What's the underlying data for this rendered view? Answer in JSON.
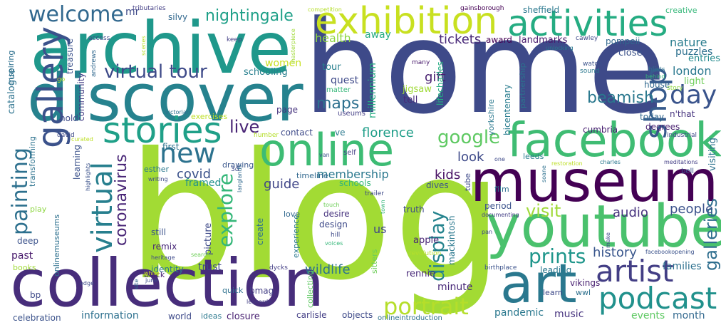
{
  "palette": {
    "purple": "#440154",
    "indigo": "#46337e",
    "navy": "#3e4a89",
    "steel": "#31688e",
    "teal": "#26828e",
    "sea": "#1f9e89",
    "green": "#35b779",
    "lime": "#6ece58",
    "yellowgreen": "#b5de2b",
    "yellow": "#c8e020"
  },
  "words": [
    {
      "text": "home",
      "color": "#3e4a89"
    },
    {
      "text": "blog",
      "color": "#a2db34"
    },
    {
      "text": "archive",
      "color": "#1f988b"
    },
    {
      "text": "discover",
      "color": "#26828e"
    },
    {
      "text": "collection",
      "color": "#472d7b"
    },
    {
      "text": "museum",
      "color": "#440154"
    },
    {
      "text": "youtube",
      "color": "#4ac16d"
    },
    {
      "text": "facebook",
      "color": "#3fbc73"
    },
    {
      "text": "online",
      "color": "#3dbc74"
    },
    {
      "text": "art",
      "color": "#2a788e"
    },
    {
      "text": "exhibition",
      "color": "#c8e020"
    },
    {
      "text": "activities",
      "color": "#25ac82"
    },
    {
      "text": "gallery",
      "color": "#3b528b"
    },
    {
      "text": "stories",
      "color": "#1fa088"
    },
    {
      "text": "shop",
      "color": "#375b8d"
    },
    {
      "text": "virtual tour",
      "color": "#3e4a89"
    },
    {
      "text": "welcome",
      "color": "#31688e"
    },
    {
      "text": "new",
      "color": "#2c728e"
    },
    {
      "text": "artist",
      "color": "#433e85"
    },
    {
      "text": "podcast",
      "color": "#21918c"
    },
    {
      "text": "virtual",
      "color": "#277f8e"
    },
    {
      "text": "painting",
      "color": "#2d708e"
    },
    {
      "text": "day",
      "color": "#3a548c"
    },
    {
      "text": "portrait",
      "color": "#b5de2b"
    },
    {
      "text": "explore",
      "color": "#35b779"
    },
    {
      "text": "coronavirus",
      "color": "#482576"
    },
    {
      "text": "display",
      "color": "#25848e"
    },
    {
      "text": "prints",
      "color": "#1f968b"
    },
    {
      "text": "galleries",
      "color": "#2e6e8e"
    },
    {
      "text": "live",
      "color": "#482475"
    },
    {
      "text": "google",
      "color": "#5ec962"
    },
    {
      "text": "visit",
      "color": "#a0da39"
    },
    {
      "text": "nightingale",
      "color": "#1fa088"
    },
    {
      "text": "maps",
      "color": "#2d708e"
    },
    {
      "text": "beamish",
      "color": "#2a788e"
    },
    {
      "text": "history",
      "color": "#39568c"
    },
    {
      "text": "people",
      "color": "#3b528b"
    },
    {
      "text": "audio",
      "color": "#46327e"
    },
    {
      "text": "tickets",
      "color": "#482878"
    },
    {
      "text": "florence",
      "color": "#1f9e89"
    },
    {
      "text": "wildlife",
      "color": "#2c728e"
    },
    {
      "text": "guide",
      "color": "#404688"
    },
    {
      "text": "covid",
      "color": "#3b528b"
    },
    {
      "text": "membership",
      "color": "#2a788e"
    },
    {
      "text": "kids",
      "color": "#471063"
    },
    {
      "text": "look",
      "color": "#3e4a89"
    },
    {
      "text": "gift",
      "color": "#481f70"
    },
    {
      "text": "london",
      "color": "#2a788e"
    },
    {
      "text": "nature",
      "color": "#287c8e"
    },
    {
      "text": "puzzles",
      "color": "#2d708e"
    },
    {
      "text": "health",
      "color": "#8fd744"
    },
    {
      "text": "away",
      "color": "#25ac82"
    },
    {
      "text": "women",
      "color": "#c8e020"
    },
    {
      "text": "schooling",
      "color": "#277f8e"
    },
    {
      "text": "millennium",
      "color": "#25ac82"
    },
    {
      "text": "quest",
      "color": "#3e4a89"
    },
    {
      "text": "tour",
      "color": "#277f8e"
    },
    {
      "text": "jigsaw",
      "color": "#a0da39"
    },
    {
      "text": "tell",
      "color": "#482878"
    },
    {
      "text": "sheffield",
      "color": "#2a788e"
    },
    {
      "text": "award",
      "color": "#440154"
    },
    {
      "text": "landmarks",
      "color": "#481a6c"
    },
    {
      "text": "pompeii",
      "color": "#31688e"
    },
    {
      "text": "close",
      "color": "#3b528b"
    },
    {
      "text": "entries",
      "color": "#238a8d"
    },
    {
      "text": "light",
      "color": "#6ece58"
    },
    {
      "text": "house",
      "color": "#31688e"
    },
    {
      "text": "n'that",
      "color": "#46337e"
    },
    {
      "text": "today",
      "color": "#31688e"
    },
    {
      "text": "degrees",
      "color": "#481f70"
    },
    {
      "text": "visiting",
      "color": "#2c728e"
    },
    {
      "text": "cumbria",
      "color": "#482071"
    },
    {
      "text": "bicentenary",
      "color": "#287c8e"
    },
    {
      "text": "period",
      "color": "#3b528b"
    },
    {
      "text": "film",
      "color": "#2d708e"
    },
    {
      "text": "leeds",
      "color": "#287c8e"
    },
    {
      "text": "yorkshire",
      "color": "#2a788e"
    },
    {
      "text": "lifecharles",
      "color": "#25ac82"
    },
    {
      "text": "partnership",
      "color": "#2c728e"
    },
    {
      "text": "creative",
      "color": "#35b779"
    },
    {
      "text": "catalogue",
      "color": "#2c728e"
    },
    {
      "text": "treasure",
      "color": "#3b528b"
    },
    {
      "text": "mr",
      "color": "#3e4a89"
    },
    {
      "text": "silvy",
      "color": "#31688e"
    },
    {
      "text": "community",
      "color": "#433e85"
    },
    {
      "text": "inspiring",
      "color": "#2d708e"
    },
    {
      "text": "hold",
      "color": "#3e4a89"
    },
    {
      "text": "learning",
      "color": "#3b528b"
    },
    {
      "text": "transforming",
      "color": "#2c728e"
    },
    {
      "text": "first",
      "color": "#2c728e"
    },
    {
      "text": "drawing",
      "color": "#39568c"
    },
    {
      "text": "framed",
      "color": "#21918c"
    },
    {
      "text": "esther",
      "color": "#2a788e"
    },
    {
      "text": "contact",
      "color": "#3e4a89"
    },
    {
      "text": "page",
      "color": "#46337e"
    },
    {
      "text": "exercises",
      "color": "#bddf26"
    },
    {
      "text": "schools",
      "color": "#35b779"
    },
    {
      "text": "timeline",
      "color": "#31688e"
    },
    {
      "text": "dives",
      "color": "#3b528b"
    },
    {
      "text": "tube",
      "color": "#3e4a89"
    },
    {
      "text": "create",
      "color": "#2d708e"
    },
    {
      "text": "desire",
      "color": "#46327e"
    },
    {
      "text": "design",
      "color": "#3e4a89"
    },
    {
      "text": "love",
      "color": "#31688e"
    },
    {
      "text": "us",
      "color": "#404688"
    },
    {
      "text": "truth",
      "color": "#3e4a89"
    },
    {
      "text": "apple",
      "color": "#482475"
    },
    {
      "text": "mackintosh",
      "color": "#2a788e"
    },
    {
      "text": "rennie",
      "color": "#482878"
    },
    {
      "text": "minute",
      "color": "#482878"
    },
    {
      "text": "leading",
      "color": "#2a788e"
    },
    {
      "text": "families",
      "color": "#2d708e"
    },
    {
      "text": "vikings",
      "color": "#482071"
    },
    {
      "text": "learn",
      "color": "#3e4a89"
    },
    {
      "text": "wwl",
      "color": "#2d708e"
    },
    {
      "text": "events",
      "color": "#5ec962"
    },
    {
      "text": "month",
      "color": "#31688e"
    },
    {
      "text": "music",
      "color": "#46327e"
    },
    {
      "text": "pandemic",
      "color": "#2a788e"
    },
    {
      "text": "objects",
      "color": "#3e4a89"
    },
    {
      "text": "carlisle",
      "color": "#433e85"
    },
    {
      "text": "closure",
      "color": "#482071"
    },
    {
      "text": "ideas",
      "color": "#2a788e"
    },
    {
      "text": "world",
      "color": "#3e4a89"
    },
    {
      "text": "information",
      "color": "#2d708e"
    },
    {
      "text": "celebration",
      "color": "#3b528b"
    },
    {
      "text": "bp",
      "color": "#3e4a89"
    },
    {
      "text": "past",
      "color": "#481a6c"
    },
    {
      "text": "deep",
      "color": "#3b528b"
    },
    {
      "text": "play",
      "color": "#8fd744"
    },
    {
      "text": "books",
      "color": "#a0da39"
    },
    {
      "text": "onlinemuseums",
      "color": "#2d708e"
    },
    {
      "text": "identity",
      "color": "#2a788e"
    },
    {
      "text": "trust",
      "color": "#3e4a89"
    },
    {
      "text": "still",
      "color": "#3b528b"
    },
    {
      "text": "remix",
      "color": "#482878"
    },
    {
      "text": "picture",
      "color": "#3e4a89"
    },
    {
      "text": "bmag",
      "color": "#433e85"
    },
    {
      "text": "quick",
      "color": "#2d708e"
    },
    {
      "text": "black",
      "color": "#482475"
    },
    {
      "text": "experience",
      "color": "#2a788e"
    },
    {
      "text": "sitters",
      "color": "#6ece58"
    },
    {
      "text": "collecting",
      "color": "#5ec962"
    },
    {
      "text": "onlineintroduction",
      "color": "#2d708e"
    },
    {
      "text": "tributaries",
      "color": "#433e85"
    },
    {
      "text": "access",
      "color": "#3e4a89"
    },
    {
      "text": "andrews",
      "color": "#31688e"
    },
    {
      "text": "keep",
      "color": "#433e85"
    },
    {
      "text": "competition",
      "color": "#b5de2b"
    },
    {
      "text": "masterpiece",
      "color": "#a0da39"
    },
    {
      "text": "scenes",
      "color": "#b5de2b"
    },
    {
      "text": "gainsborough",
      "color": "#440154"
    },
    {
      "text": "cawley",
      "color": "#3e4a89"
    },
    {
      "text": "unlocking",
      "color": "#2a788e"
    },
    {
      "text": "watch",
      "color": "#3b528b"
    },
    {
      "text": "sound",
      "color": "#2a788e"
    },
    {
      "text": "blists",
      "color": "#2d708e"
    },
    {
      "text": "behind",
      "color": "#35b779"
    },
    {
      "text": "story",
      "color": "#8fd744"
    },
    {
      "text": "many",
      "color": "#481a6c"
    },
    {
      "text": "matter",
      "color": "#35b779"
    },
    {
      "text": "useums",
      "color": "#433e85"
    },
    {
      "text": "go",
      "color": "#b5de2b"
    },
    {
      "text": "curated",
      "color": "#bddf26"
    },
    {
      "text": "victorian",
      "color": "#2d708e"
    },
    {
      "text": "david",
      "color": "#3e4a89"
    },
    {
      "text": "highlights",
      "color": "#3b528b"
    },
    {
      "text": "writing",
      "color": "#3e4a89"
    },
    {
      "text": "3d",
      "color": "#3e4a89"
    },
    {
      "text": "langlands",
      "color": "#31688e"
    },
    {
      "text": "humber",
      "color": "#b5de2b"
    },
    {
      "text": "self",
      "color": "#433e85"
    },
    {
      "text": "van",
      "color": "#3b528b"
    },
    {
      "text": "restoration",
      "color": "#bddf26"
    },
    {
      "text": "charles",
      "color": "#2a788e"
    },
    {
      "text": "meditations",
      "color": "#433e85"
    },
    {
      "text": "industrial",
      "color": "#3e4a89"
    },
    {
      "text": "bell",
      "color": "#3b528b"
    },
    {
      "text": "one",
      "color": "#3e4a89"
    },
    {
      "text": "soane",
      "color": "#2d708e"
    },
    {
      "text": "make",
      "color": "#3e4a89"
    },
    {
      "text": "facebookopening",
      "color": "#3b528b"
    },
    {
      "text": "documenting",
      "color": "#433e85"
    },
    {
      "text": "pan",
      "color": "#3e4a89"
    },
    {
      "text": "trailer",
      "color": "#3e4a89"
    },
    {
      "text": "town",
      "color": "#35b779"
    },
    {
      "text": "touch",
      "color": "#6ece58"
    },
    {
      "text": "hill",
      "color": "#3e4a89"
    },
    {
      "text": "voices",
      "color": "#35b779"
    },
    {
      "text": "revolution",
      "color": "#b5de2b"
    },
    {
      "text": "birthplace",
      "color": "#3b528b"
    },
    {
      "text": "dycks",
      "color": "#433e85"
    },
    {
      "text": "search",
      "color": "#6ece58"
    },
    {
      "text": "heritage",
      "color": "#3e4a89"
    },
    {
      "text": "white",
      "color": "#c8e020"
    },
    {
      "text": "june",
      "color": "#3e4a89"
    },
    {
      "text": "edge",
      "color": "#3e4a89"
    },
    {
      "text": "site",
      "color": "#31688e"
    },
    {
      "text": "leonardo",
      "color": "#433e85"
    },
    {
      "text": "ve",
      "color": "#2a788e"
    }
  ]
}
